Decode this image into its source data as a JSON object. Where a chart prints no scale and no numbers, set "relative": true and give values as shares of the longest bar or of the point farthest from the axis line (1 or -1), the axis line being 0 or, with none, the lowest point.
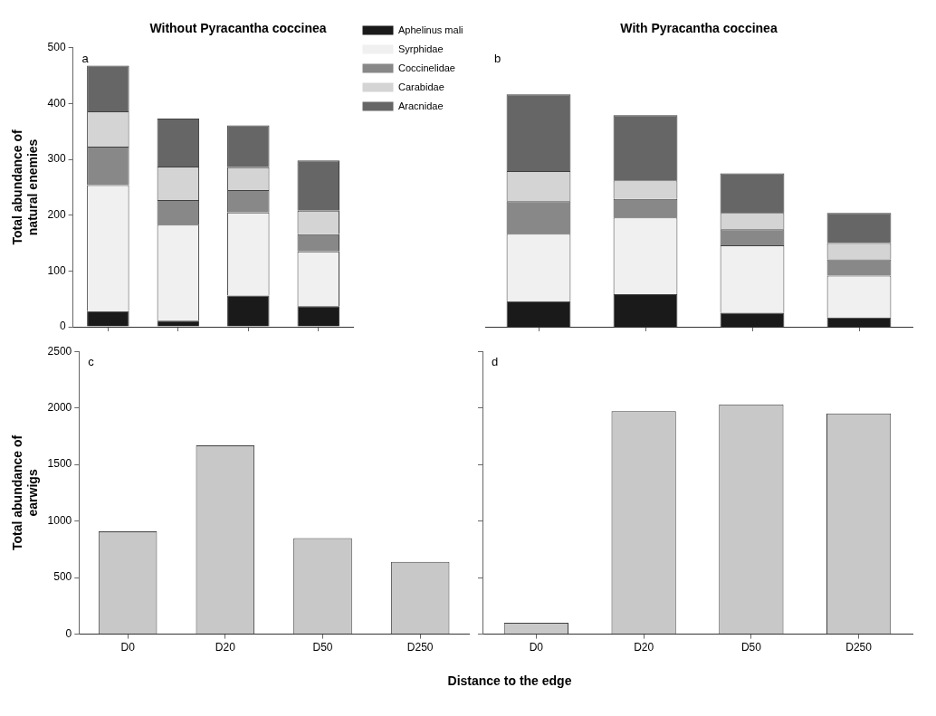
{
  "chart_data": [
    {
      "type": "bar",
      "title": "Without Pyracantha coccinea",
      "ylabel": "Total abundance of natural enemies",
      "annotations": [
        "a"
      ],
      "categories": [
        null,
        null,
        null,
        null
      ],
      "stacked": true,
      "ylim": [
        0,
        500
      ],
      "yticks": [
        0,
        100,
        200,
        300,
        400,
        500
      ],
      "grid": false,
      "legend": "right",
      "tick_labels": "y",
      "series": [
        {
          "name": "Aphelinus mali",
          "color": "#1a1a1a",
          "values": [
            28,
            11,
            56,
            37
          ]
        },
        {
          "name": "Syrphidae",
          "color": "#f0f0f0",
          "values": [
            226,
            172,
            149,
            98
          ]
        },
        {
          "name": "Coccinelidae",
          "color": "#888888",
          "values": [
            69,
            44,
            40,
            31
          ]
        },
        {
          "name": "Carabidae",
          "color": "#d4d4d4",
          "values": [
            63,
            60,
            41,
            42
          ]
        },
        {
          "name": "Aracnidae",
          "color": "#666666",
          "values": [
            82,
            86,
            75,
            90
          ]
        }
      ]
    },
    {
      "type": "bar",
      "title": "With Pyracantha coccinea",
      "annotations": [
        "b"
      ],
      "categories": [
        null,
        null,
        null,
        null
      ],
      "stacked": true,
      "relative": true,
      "grid": false,
      "tick_labels": false,
      "series": [
        {
          "color": "#1a1a1a",
          "values": [
            0.11,
            0.14,
            0.06,
            0.04
          ]
        },
        {
          "color": "#f0f0f0",
          "values": [
            0.29,
            0.33,
            0.29,
            0.18
          ]
        },
        {
          "color": "#888888",
          "values": [
            0.14,
            0.08,
            0.07,
            0.07
          ]
        },
        {
          "color": "#d4d4d4",
          "values": [
            0.13,
            0.08,
            0.07,
            0.07
          ]
        },
        {
          "color": "#666666",
          "values": [
            0.33,
            0.28,
            0.17,
            0.13
          ]
        }
      ]
    },
    {
      "type": "bar",
      "ylabel": "Total abundance of earwigs",
      "xlabel": "Distance to the edge",
      "annotations": [
        "c"
      ],
      "categories": [
        "D0",
        "D20",
        "D50",
        "D250"
      ],
      "values": [
        910,
        1670,
        850,
        640
      ],
      "color": "#c8c8c8",
      "ylim": [
        0,
        2500
      ],
      "yticks": [
        0,
        500,
        1000,
        1500,
        2000,
        2500
      ],
      "grid": false
    },
    {
      "type": "bar",
      "annotations": [
        "d"
      ],
      "categories": [
        "D0",
        "D20",
        "D50",
        "D250"
      ],
      "values": [
        100,
        1970,
        2030,
        1950
      ],
      "color": "#c8c8c8",
      "ylim": [
        0,
        2500
      ],
      "yticks": [
        0,
        500,
        1000,
        1500,
        2000,
        2500
      ],
      "grid": false,
      "tick_labels": "x"
    }
  ]
}
